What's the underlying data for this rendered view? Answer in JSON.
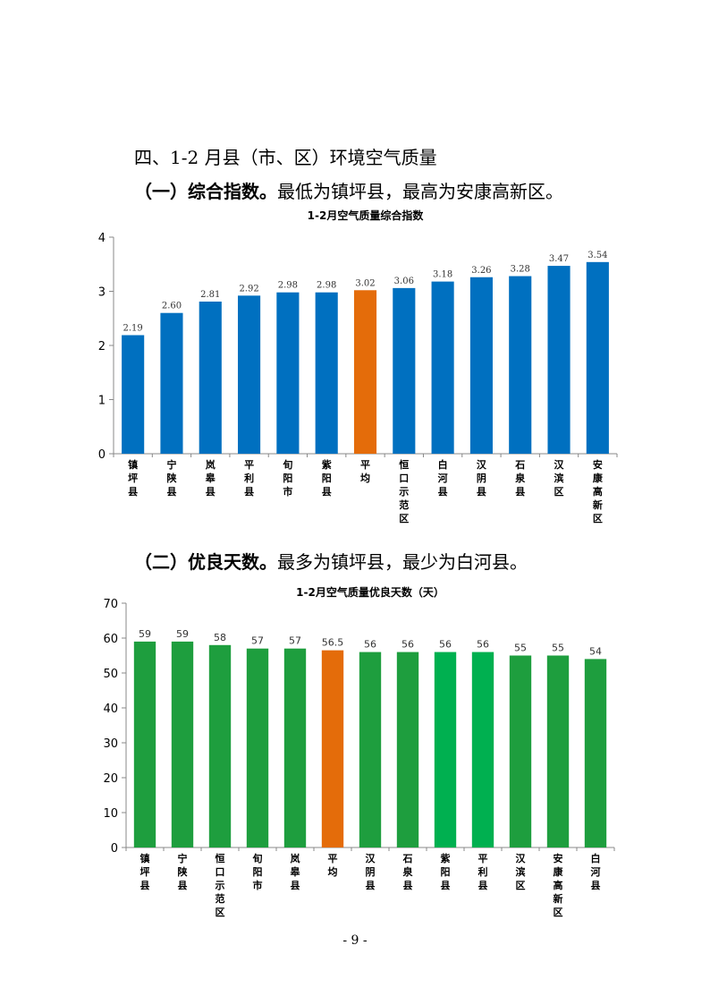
{
  "section_heading": "四、1-2 月县（市、区）环境空气质量",
  "sub1": {
    "label": "（一）综合指数。",
    "text": "最低为镇坪县，最高为安康高新区。"
  },
  "sub2": {
    "label": "（二）优良天数。",
    "text": "最多为镇坪县，最少为白河县。"
  },
  "page_number": "- 9 -",
  "chart_data": [
    {
      "type": "bar",
      "title": "1-2月空气质量综合指数",
      "categories": [
        "镇坪县",
        "宁陕县",
        "岚皋县",
        "平利县",
        "旬阳市",
        "紫阳县",
        "平均",
        "恒口示范区",
        "白河县",
        "汉阴县",
        "石泉县",
        "汉滨区",
        "安康高新区"
      ],
      "values": [
        2.19,
        2.6,
        2.81,
        2.92,
        2.98,
        2.98,
        3.02,
        3.06,
        3.18,
        3.26,
        3.28,
        3.47,
        3.54
      ],
      "value_labels": [
        "2.19",
        "2.60",
        "2.81",
        "2.92",
        "2.98",
        "2.98",
        "3.02",
        "3.06",
        "3.18",
        "3.26",
        "3.28",
        "3.47",
        "3.54"
      ],
      "ylim": [
        0,
        4
      ],
      "yticks": [
        "0",
        "1",
        "2",
        "3",
        "4"
      ],
      "colors": {
        "bar": "#0070c0",
        "average": "#e46c0a"
      },
      "highlight": "平均",
      "grid": false
    },
    {
      "type": "bar",
      "title": "1-2月空气质量优良天数（天）",
      "categories": [
        "镇坪县",
        "宁陕县",
        "恒口示范区",
        "旬阳市",
        "岚皋县",
        "平均",
        "汉阴县",
        "石泉县",
        "紫阳县",
        "平利县",
        "汉滨区",
        "安康高新区",
        "白河县"
      ],
      "values": [
        59,
        59,
        58,
        57,
        57,
        56.5,
        56,
        56,
        56,
        56,
        55,
        55,
        54
      ],
      "value_labels": [
        "59",
        "59",
        "58",
        "57",
        "57",
        "56.5",
        "56",
        "56",
        "56",
        "56",
        "55",
        "55",
        "54"
      ],
      "ylim": [
        0,
        70
      ],
      "yticks": [
        "0",
        "10",
        "20",
        "30",
        "40",
        "50",
        "60",
        "70"
      ],
      "colors": {
        "bar_dark": "#1e9e3e",
        "bar_light": "#00b050",
        "average": "#e46c0a"
      },
      "highlight": "平均",
      "light_bars": [
        "紫阳县",
        "平利县"
      ],
      "grid": false
    }
  ]
}
